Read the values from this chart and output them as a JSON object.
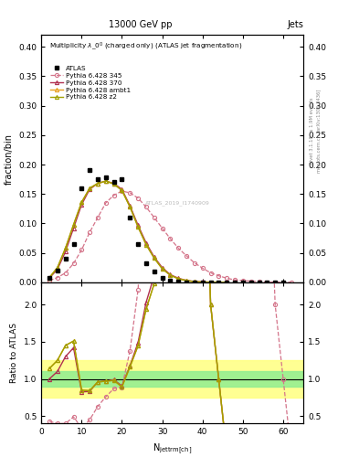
{
  "color_atlas": "#000000",
  "color_p345": "#d4748a",
  "color_p370": "#b03050",
  "color_pambt": "#e8a020",
  "color_pz2": "#a0a000",
  "atlas_x": [
    2,
    4,
    6,
    8,
    10,
    12,
    14,
    16,
    18,
    20,
    22,
    24,
    26,
    28,
    30,
    32,
    34,
    36,
    38,
    40,
    42,
    44,
    46,
    48,
    50,
    52,
    54,
    56,
    58,
    60
  ],
  "atlas_y": [
    0.007,
    0.02,
    0.04,
    0.065,
    0.16,
    0.19,
    0.175,
    0.178,
    0.17,
    0.175,
    0.11,
    0.065,
    0.033,
    0.018,
    0.008,
    0.003,
    0.001,
    0.0005,
    0.0002,
    0.0001,
    0.0,
    0.0,
    0.0,
    0.0,
    0.0,
    0.0,
    0.0,
    0.0,
    0.0,
    0.0
  ],
  "p345_x": [
    2,
    4,
    6,
    8,
    10,
    12,
    14,
    16,
    18,
    20,
    22,
    24,
    26,
    28,
    30,
    32,
    34,
    36,
    38,
    40,
    42,
    44,
    46,
    48,
    50,
    52,
    54,
    56,
    58,
    60,
    62
  ],
  "p345_y": [
    0.003,
    0.008,
    0.016,
    0.032,
    0.055,
    0.085,
    0.11,
    0.135,
    0.148,
    0.155,
    0.152,
    0.143,
    0.128,
    0.11,
    0.092,
    0.074,
    0.058,
    0.045,
    0.033,
    0.024,
    0.016,
    0.011,
    0.007,
    0.004,
    0.003,
    0.002,
    0.001,
    0.0005,
    0.0002,
    0.0001,
    0.0
  ],
  "p370_x": [
    2,
    4,
    6,
    8,
    10,
    12,
    14,
    16,
    18,
    20,
    22,
    24,
    26,
    28,
    30,
    32,
    34,
    36,
    38,
    40,
    42,
    44,
    46
  ],
  "p370_y": [
    0.007,
    0.022,
    0.052,
    0.092,
    0.132,
    0.158,
    0.168,
    0.172,
    0.168,
    0.158,
    0.13,
    0.097,
    0.067,
    0.043,
    0.025,
    0.013,
    0.007,
    0.003,
    0.0015,
    0.0006,
    0.0002,
    0.0001,
    0.0
  ],
  "pambt_x": [
    2,
    4,
    6,
    8,
    10,
    12,
    14,
    16,
    18,
    20,
    22,
    24,
    26,
    28,
    30,
    32,
    34,
    36,
    38,
    40,
    42,
    44,
    46
  ],
  "pambt_y": [
    0.008,
    0.025,
    0.058,
    0.098,
    0.136,
    0.16,
    0.168,
    0.172,
    0.167,
    0.156,
    0.128,
    0.094,
    0.064,
    0.041,
    0.023,
    0.012,
    0.006,
    0.003,
    0.001,
    0.0005,
    0.0002,
    0.0001,
    0.0
  ],
  "pz2_x": [
    2,
    4,
    6,
    8,
    10,
    12,
    14,
    16,
    18,
    20,
    22,
    24,
    26,
    28,
    30,
    32,
    34,
    36,
    38,
    40,
    42,
    44,
    46
  ],
  "pz2_y": [
    0.008,
    0.025,
    0.058,
    0.098,
    0.136,
    0.16,
    0.168,
    0.172,
    0.167,
    0.156,
    0.128,
    0.094,
    0.064,
    0.041,
    0.023,
    0.012,
    0.006,
    0.003,
    0.001,
    0.0005,
    0.0002,
    0.0001,
    0.0
  ],
  "ratio345_x": [
    2,
    4,
    6,
    8,
    10,
    12,
    14,
    16,
    18,
    20,
    22,
    24,
    26,
    28,
    30,
    32,
    34,
    36,
    38,
    40,
    42,
    44,
    46,
    48,
    50,
    52,
    54,
    56,
    58,
    60,
    62
  ],
  "ratio345_y": [
    0.43,
    0.4,
    0.4,
    0.49,
    0.34,
    0.45,
    0.63,
    0.76,
    0.87,
    0.89,
    1.38,
    2.2,
    3.9,
    6.1,
    11.5,
    24.7,
    58.0,
    90.0,
    165.0,
    240.0,
    160.0,
    110.0,
    70.0,
    40.0,
    30.0,
    20.0,
    10.0,
    5.0,
    2.0,
    1.0,
    0.0
  ],
  "ratio370_x": [
    2,
    4,
    6,
    8,
    10,
    12,
    14,
    16,
    18,
    20,
    22,
    24,
    26,
    28,
    30,
    32,
    34,
    36,
    38,
    40,
    42,
    44,
    46,
    48,
    50,
    52,
    54,
    56,
    58,
    60,
    62,
    64
  ],
  "ratio370_y": [
    1.0,
    1.1,
    1.3,
    1.42,
    0.825,
    0.832,
    0.96,
    0.97,
    0.99,
    0.905,
    1.18,
    1.49,
    2.03,
    2.39,
    3.125,
    4.33,
    7.0,
    6.0,
    7.5,
    6.0,
    2.0,
    1.0,
    0.0,
    0.0,
    0.0,
    0.0,
    0.0,
    0.0,
    0.0,
    0.0,
    0.0,
    0.0
  ],
  "ratio_ambt_x": [
    2,
    4,
    6,
    8,
    10,
    12,
    14,
    16,
    18,
    20,
    22,
    24,
    26,
    28,
    30,
    32,
    34,
    36,
    38,
    40,
    42,
    44,
    46,
    48,
    50,
    52,
    54,
    56,
    58,
    60,
    62,
    64
  ],
  "ratio_ambt_y": [
    1.14,
    1.25,
    1.45,
    1.51,
    0.85,
    0.842,
    0.96,
    0.97,
    0.98,
    0.892,
    1.164,
    1.446,
    1.94,
    2.28,
    2.875,
    4.0,
    6.0,
    6.0,
    5.0,
    5.0,
    2.0,
    1.0,
    0.0,
    0.0,
    0.0,
    0.0,
    0.0,
    0.0,
    0.0,
    0.0,
    0.0,
    0.0
  ],
  "ratio_z2_x": [
    2,
    4,
    6,
    8,
    10,
    12,
    14,
    16,
    18,
    20,
    22,
    24,
    26,
    28,
    30,
    32,
    34,
    36,
    38,
    40,
    42,
    44,
    46,
    48,
    50,
    52,
    54,
    56,
    58,
    60,
    62,
    64
  ],
  "ratio_z2_y": [
    1.14,
    1.25,
    1.45,
    1.51,
    0.85,
    0.842,
    0.96,
    0.97,
    0.98,
    0.892,
    1.164,
    1.446,
    1.94,
    2.28,
    2.875,
    4.0,
    6.0,
    6.0,
    5.0,
    5.0,
    2.0,
    1.0,
    0.0,
    0.0,
    0.0,
    0.0,
    0.0,
    0.0,
    0.0,
    0.0,
    0.0,
    0.0
  ],
  "ylim_main": [
    0.0,
    0.42
  ],
  "ylim_ratio": [
    0.4,
    2.3
  ],
  "xlim": [
    0,
    65
  ],
  "yticks_main": [
    0.0,
    0.05,
    0.1,
    0.15,
    0.2,
    0.25,
    0.3,
    0.35,
    0.4
  ],
  "yticks_ratio": [
    0.5,
    1.0,
    1.5,
    2.0
  ]
}
